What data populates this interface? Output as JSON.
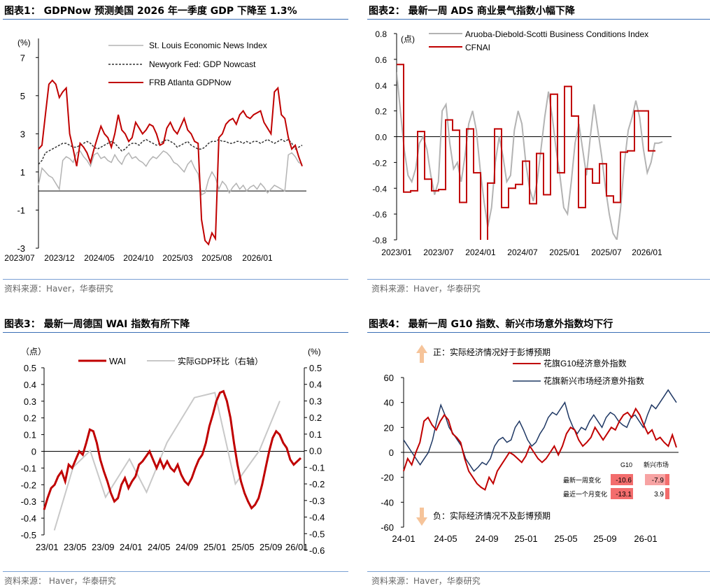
{
  "panels": [
    {
      "title": "图表1： GDPNow 预测美国 2026 年一季度 GDP 下降至 1.3%",
      "source": "资料来源：Haver，华泰研究"
    },
    {
      "title": "图表2： 最新一周 ADS 商业景气指数小幅下降",
      "source": "资料来源：Haver，华泰研究"
    },
    {
      "title": "图表3： 最新一周德国 WAI 指数有所下降",
      "source": "资料来源： Haver，华泰研究"
    },
    {
      "title": "图表4： 最新一周 G10 指数、新兴市场意外指数均下行",
      "source": "资料来源：Haver，华泰研究"
    }
  ],
  "chart_data": [
    {
      "type": "line",
      "unit_label": "(%)",
      "ylim": [
        -3,
        8
      ],
      "yticks": [
        "7",
        "5",
        "3",
        "1",
        "-1",
        "-3"
      ],
      "ytick_values": [
        7,
        5,
        3,
        1,
        -1,
        -3
      ],
      "xtick_labels": [
        "2023/07",
        "2023/12",
        "2024/05",
        "2024/10",
        "2025/03",
        "2025/08",
        "2026/01"
      ],
      "series": [
        {
          "name": "St. Louis Economic News Index",
          "color": "#b3b3b3",
          "style": "solid",
          "values": [
            0.3,
            1.2,
            1.0,
            0.8,
            0.7,
            0.4,
            0.1,
            1.6,
            1.8,
            1.7,
            1.5,
            2.0,
            2.1,
            1.8,
            1.6,
            1.3,
            1.9,
            2.0,
            1.7,
            1.8,
            1.6,
            1.5,
            1.9,
            1.6,
            1.4,
            1.8,
            2.0,
            1.7,
            1.8,
            1.6,
            1.5,
            1.3,
            1.6,
            1.8,
            1.7,
            1.9,
            2.1,
            2.0,
            1.8,
            1.5,
            1.4,
            1.2,
            1.0,
            1.4,
            1.6,
            1.2,
            0.9,
            -0.2,
            -0.1,
            0.6,
            1.0,
            0.7,
            0.1,
            0.5,
            0.3,
            -0.1,
            0.2,
            0.4,
            0.1,
            0.3,
            0.0,
            0.2,
            0.3,
            0.1,
            0.4,
            0.2,
            -0.1,
            0.1,
            0.3,
            0.2,
            0.1,
            0.0,
            1.9,
            2.0,
            1.8,
            1.5,
            1.4
          ]
        },
        {
          "name": "Newyork Fed: GDP Nowcast",
          "color": "#333333",
          "style": "dashed",
          "values": [
            1.4,
            1.6,
            2.0,
            2.1,
            2.2,
            2.3,
            2.4,
            2.5,
            2.5,
            2.4,
            2.3,
            2.3,
            2.4,
            2.5,
            2.6,
            2.5,
            2.3,
            2.2,
            2.3,
            2.4,
            2.5,
            2.6,
            2.5,
            2.3,
            2.1,
            2.2,
            2.4,
            2.5,
            2.5,
            2.4,
            2.6,
            2.7,
            2.6,
            2.5,
            2.4,
            2.5,
            2.6,
            2.7,
            2.6,
            2.5,
            2.3,
            2.4,
            2.5,
            2.6,
            2.4,
            2.3,
            2.2,
            2.2,
            2.3,
            2.5,
            2.6,
            2.6,
            2.7,
            2.6,
            2.6,
            2.5,
            2.5,
            2.6,
            2.6,
            2.5,
            2.6,
            2.5,
            2.6,
            2.6,
            2.5,
            2.6,
            2.7,
            2.6,
            2.5,
            2.6,
            2.7,
            2.6,
            2.7,
            2.5,
            2.2,
            2.3,
            2.4
          ]
        },
        {
          "name": "FRB Atlanta GDPNow",
          "color": "#c00000",
          "style": "solid",
          "values": [
            2.2,
            2.4,
            4.0,
            5.6,
            5.8,
            5.6,
            4.9,
            5.2,
            5.4,
            3.0,
            2.2,
            1.3,
            2.5,
            2.3,
            2.0,
            1.5,
            2.2,
            2.8,
            3.4,
            3.0,
            2.8,
            2.3,
            3.0,
            4.0,
            3.2,
            3.0,
            2.6,
            2.8,
            3.6,
            3.3,
            3.0,
            3.2,
            3.5,
            3.4,
            3.0,
            2.4,
            2.5,
            3.3,
            3.6,
            3.2,
            3.0,
            3.4,
            3.8,
            3.2,
            3.0,
            2.6,
            2.5,
            -1.5,
            -2.6,
            -2.8,
            -2.2,
            -2.5,
            2.8,
            3.0,
            3.5,
            3.7,
            3.8,
            3.5,
            4.0,
            4.2,
            3.9,
            3.8,
            4.0,
            4.1,
            4.2,
            3.6,
            3.3,
            3.0,
            5.2,
            5.4,
            4.0,
            3.8,
            2.8,
            2.2,
            2.4,
            1.8,
            1.3
          ]
        }
      ]
    },
    {
      "type": "line",
      "unit_label": "(点)",
      "ylim": [
        -0.8,
        0.8
      ],
      "yticks": [
        "0.8",
        "0.6",
        "0.4",
        "0.2",
        "0.0",
        "-0.2",
        "-0.4",
        "-0.6",
        "-0.8"
      ],
      "ytick_values": [
        0.8,
        0.6,
        0.4,
        0.2,
        0.0,
        -0.2,
        -0.4,
        -0.6,
        -0.8
      ],
      "xtick_labels": [
        "2023/01",
        "2023/07",
        "2024/01",
        "2024/07",
        "2025/01",
        "2025/07",
        "2026/01"
      ],
      "series": [
        {
          "name": "Aruoba-Diebold-Scotti Business Conditions Index",
          "color": "#b3b3b3",
          "style": "solid",
          "values": [
            0.5,
            0.2,
            -0.1,
            -0.3,
            -0.35,
            -0.25,
            -0.05,
            0.0,
            -0.1,
            -0.3,
            -0.45,
            -0.35,
            0.2,
            0.25,
            -0.05,
            -0.25,
            -0.2,
            -0.35,
            -0.15,
            0.1,
            0.2,
            0.05,
            -0.25,
            -0.5,
            -0.7,
            -0.55,
            -0.2,
            0.0,
            -0.15,
            -0.35,
            -0.3,
            0.05,
            0.2,
            0.1,
            -0.2,
            -0.4,
            -0.5,
            -0.35,
            -0.1,
            0.15,
            0.35,
            0.15,
            -0.1,
            -0.3,
            -0.55,
            -0.6,
            -0.35,
            -0.05,
            0.1,
            -0.1,
            -0.3,
            0.0,
            0.25,
            0.05,
            -0.15,
            -0.4,
            -0.6,
            -0.75,
            -0.8,
            -0.55,
            -0.2,
            0.05,
            0.15,
            0.28,
            0.15,
            -0.1,
            -0.28,
            -0.2,
            -0.05,
            -0.05,
            -0.04
          ]
        },
        {
          "name": "CFNAI",
          "color": "#c00000",
          "style": "step",
          "values": [
            0.56,
            -0.43,
            -0.42,
            0.04,
            -0.33,
            -0.42,
            -0.41,
            0.13,
            0.05,
            -0.51,
            0.06,
            -0.28,
            -1.2,
            -0.36,
            0.06,
            -0.55,
            -0.4,
            -0.37,
            -0.19,
            -0.52,
            -0.13,
            -0.45,
            0.33,
            -0.28,
            0.39,
            0.16,
            -0.55,
            -0.25,
            -0.36,
            -0.21,
            -0.46,
            -0.51,
            -0.12,
            -0.11,
            0.2,
            0.2,
            -0.11,
            -0.11
          ]
        }
      ]
    },
    {
      "type": "line",
      "left_unit": "（点）",
      "right_unit": "(%)",
      "ylim_left": [
        -0.5,
        0.5
      ],
      "ylim_right": [
        -0.6,
        0.5
      ],
      "yticks_left": [
        "0.5",
        "0.4",
        "0.3",
        "0.2",
        "0.1",
        "0",
        "-0.1",
        "-0.2",
        "-0.3",
        "-0.4",
        "-0.5"
      ],
      "ytick_values_left": [
        0.5,
        0.4,
        0.3,
        0.2,
        0.1,
        0,
        -0.1,
        -0.2,
        -0.3,
        -0.4,
        -0.5
      ],
      "yticks_right": [
        "0.5",
        "0.4",
        "0.3",
        "0.2",
        "0.1",
        "0.0",
        "-0.1",
        "-0.2",
        "-0.3",
        "-0.4",
        "-0.5",
        "-0.6"
      ],
      "ytick_values_right": [
        0.5,
        0.4,
        0.3,
        0.2,
        0.1,
        0.0,
        -0.1,
        -0.2,
        -0.3,
        -0.4,
        -0.5,
        -0.6
      ],
      "xtick_labels": [
        "23/01",
        "23/05",
        "23/09",
        "24/01",
        "24/05",
        "24/09",
        "25/01",
        "25/05",
        "25/09",
        "26/01"
      ],
      "series": [
        {
          "name": "WAI",
          "color": "#c00000",
          "style": "solid",
          "axis": "left",
          "values": [
            -0.35,
            -0.28,
            -0.22,
            -0.2,
            -0.15,
            -0.12,
            -0.18,
            -0.08,
            -0.1,
            -0.05,
            0.0,
            -0.02,
            0.05,
            0.13,
            0.12,
            0.05,
            -0.05,
            -0.12,
            -0.18,
            -0.25,
            -0.3,
            -0.28,
            -0.2,
            -0.16,
            -0.22,
            -0.18,
            -0.15,
            -0.08,
            -0.06,
            -0.03,
            0.0,
            -0.05,
            -0.1,
            -0.05,
            -0.1,
            -0.06,
            -0.1,
            -0.12,
            -0.08,
            -0.14,
            -0.18,
            -0.2,
            -0.16,
            -0.1,
            -0.05,
            -0.02,
            0.05,
            0.15,
            0.22,
            0.3,
            0.35,
            0.36,
            0.3,
            0.2,
            0.05,
            -0.08,
            -0.18,
            -0.25,
            -0.3,
            -0.34,
            -0.32,
            -0.28,
            -0.2,
            -0.1,
            0.0,
            0.08,
            0.12,
            0.1,
            0.05,
            0.02,
            -0.05,
            -0.08,
            -0.06,
            -0.04
          ]
        },
        {
          "name": "实际GDP环比（右轴）",
          "color": "#c8c8c8",
          "style": "solid",
          "axis": "right",
          "points": [
            [
              0.06,
              -0.48
            ],
            [
              0.17,
              -0.1
            ],
            [
              0.27,
              0.0
            ],
            [
              0.36,
              -0.28
            ],
            [
              0.5,
              -0.05
            ],
            [
              0.6,
              -0.25
            ],
            [
              0.72,
              0.05
            ],
            [
              0.88,
              0.32
            ],
            [
              1.0,
              0.35
            ],
            [
              1.12,
              -0.2
            ],
            [
              1.26,
              0.0
            ],
            [
              1.38,
              0.3
            ]
          ]
        }
      ]
    },
    {
      "type": "line",
      "ylim": [
        -60,
        60
      ],
      "yticks": [
        "60",
        "40",
        "20",
        "0",
        "-20",
        "-40",
        "-60"
      ],
      "ytick_values": [
        60,
        40,
        20,
        0,
        -20,
        -40,
        -60
      ],
      "xtick_labels": [
        "24-01",
        "24-05",
        "24-09",
        "25-01",
        "25-05",
        "25-09",
        "26-01"
      ],
      "series": [
        {
          "name": "花旗G10经济意外指数",
          "color": "#c00000",
          "style": "solid",
          "values": [
            -15,
            -5,
            -10,
            0,
            8,
            25,
            28,
            22,
            18,
            25,
            30,
            26,
            15,
            12,
            8,
            -5,
            -15,
            -20,
            -25,
            -28,
            -30,
            -20,
            -25,
            -15,
            -10,
            -5,
            0,
            -2,
            -5,
            -8,
            -3,
            5,
            0,
            -5,
            -8,
            -5,
            0,
            5,
            -2,
            5,
            15,
            20,
            18,
            10,
            5,
            8,
            12,
            20,
            15,
            10,
            15,
            20,
            18,
            25,
            30,
            32,
            28,
            35,
            30,
            22,
            15,
            18,
            10,
            12,
            8,
            5,
            14,
            4
          ]
        },
        {
          "name": "花旗新兴市场经济意外指数",
          "color": "#1f3864",
          "style": "solid",
          "values": [
            10,
            5,
            0,
            -5,
            -10,
            -5,
            0,
            10,
            25,
            38,
            30,
            20,
            15,
            10,
            5,
            -5,
            -10,
            -15,
            -12,
            -8,
            -10,
            -5,
            5,
            10,
            12,
            8,
            10,
            20,
            25,
            18,
            10,
            5,
            8,
            15,
            20,
            28,
            32,
            30,
            35,
            40,
            28,
            20,
            15,
            20,
            18,
            25,
            30,
            25,
            20,
            28,
            32,
            30,
            25,
            22,
            20,
            28,
            30,
            25,
            20,
            30,
            38,
            35,
            40,
            45,
            50,
            45,
            40
          ]
        }
      ],
      "top_note": "正：实际经济情况好于彭博预期",
      "bottom_note": "负：实际经济情况不及彭博预期",
      "table": {
        "headers": [
          "G10",
          "新兴市场"
        ],
        "rows": [
          {
            "label": "最新一周变化",
            "g10": "-10.6",
            "em": "-7.9"
          },
          {
            "label": "最近一个月变化",
            "g10": "-13.1",
            "em": "3.9"
          }
        ]
      }
    }
  ]
}
